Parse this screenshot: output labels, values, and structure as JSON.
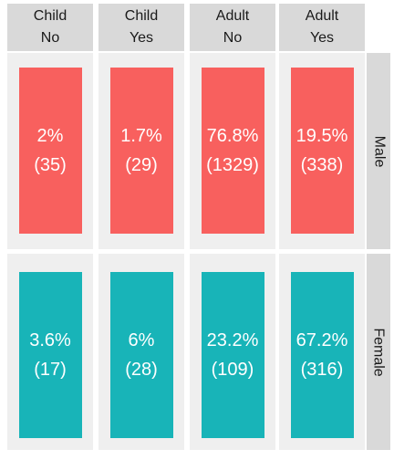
{
  "chart_data": {
    "type": "table",
    "columns": [
      {
        "line1": "Child",
        "line2": "No"
      },
      {
        "line1": "Child",
        "line2": "Yes"
      },
      {
        "line1": "Adult",
        "line2": "No"
      },
      {
        "line1": "Adult",
        "line2": "Yes"
      }
    ],
    "rows": [
      {
        "label": "Male",
        "color": "#f8605e",
        "cells": [
          {
            "pct": "2%",
            "count": "(35)"
          },
          {
            "pct": "1.7%",
            "count": "(29)"
          },
          {
            "pct": "76.8%",
            "count": "(1329)"
          },
          {
            "pct": "19.5%",
            "count": "(338)"
          }
        ]
      },
      {
        "label": "Female",
        "color": "#18b4b8",
        "cells": [
          {
            "pct": "3.6%",
            "count": "(17)"
          },
          {
            "pct": "6%",
            "count": "(28)"
          },
          {
            "pct": "23.2%",
            "count": "(109)"
          },
          {
            "pct": "67.2%",
            "count": "(316)"
          }
        ]
      }
    ]
  }
}
